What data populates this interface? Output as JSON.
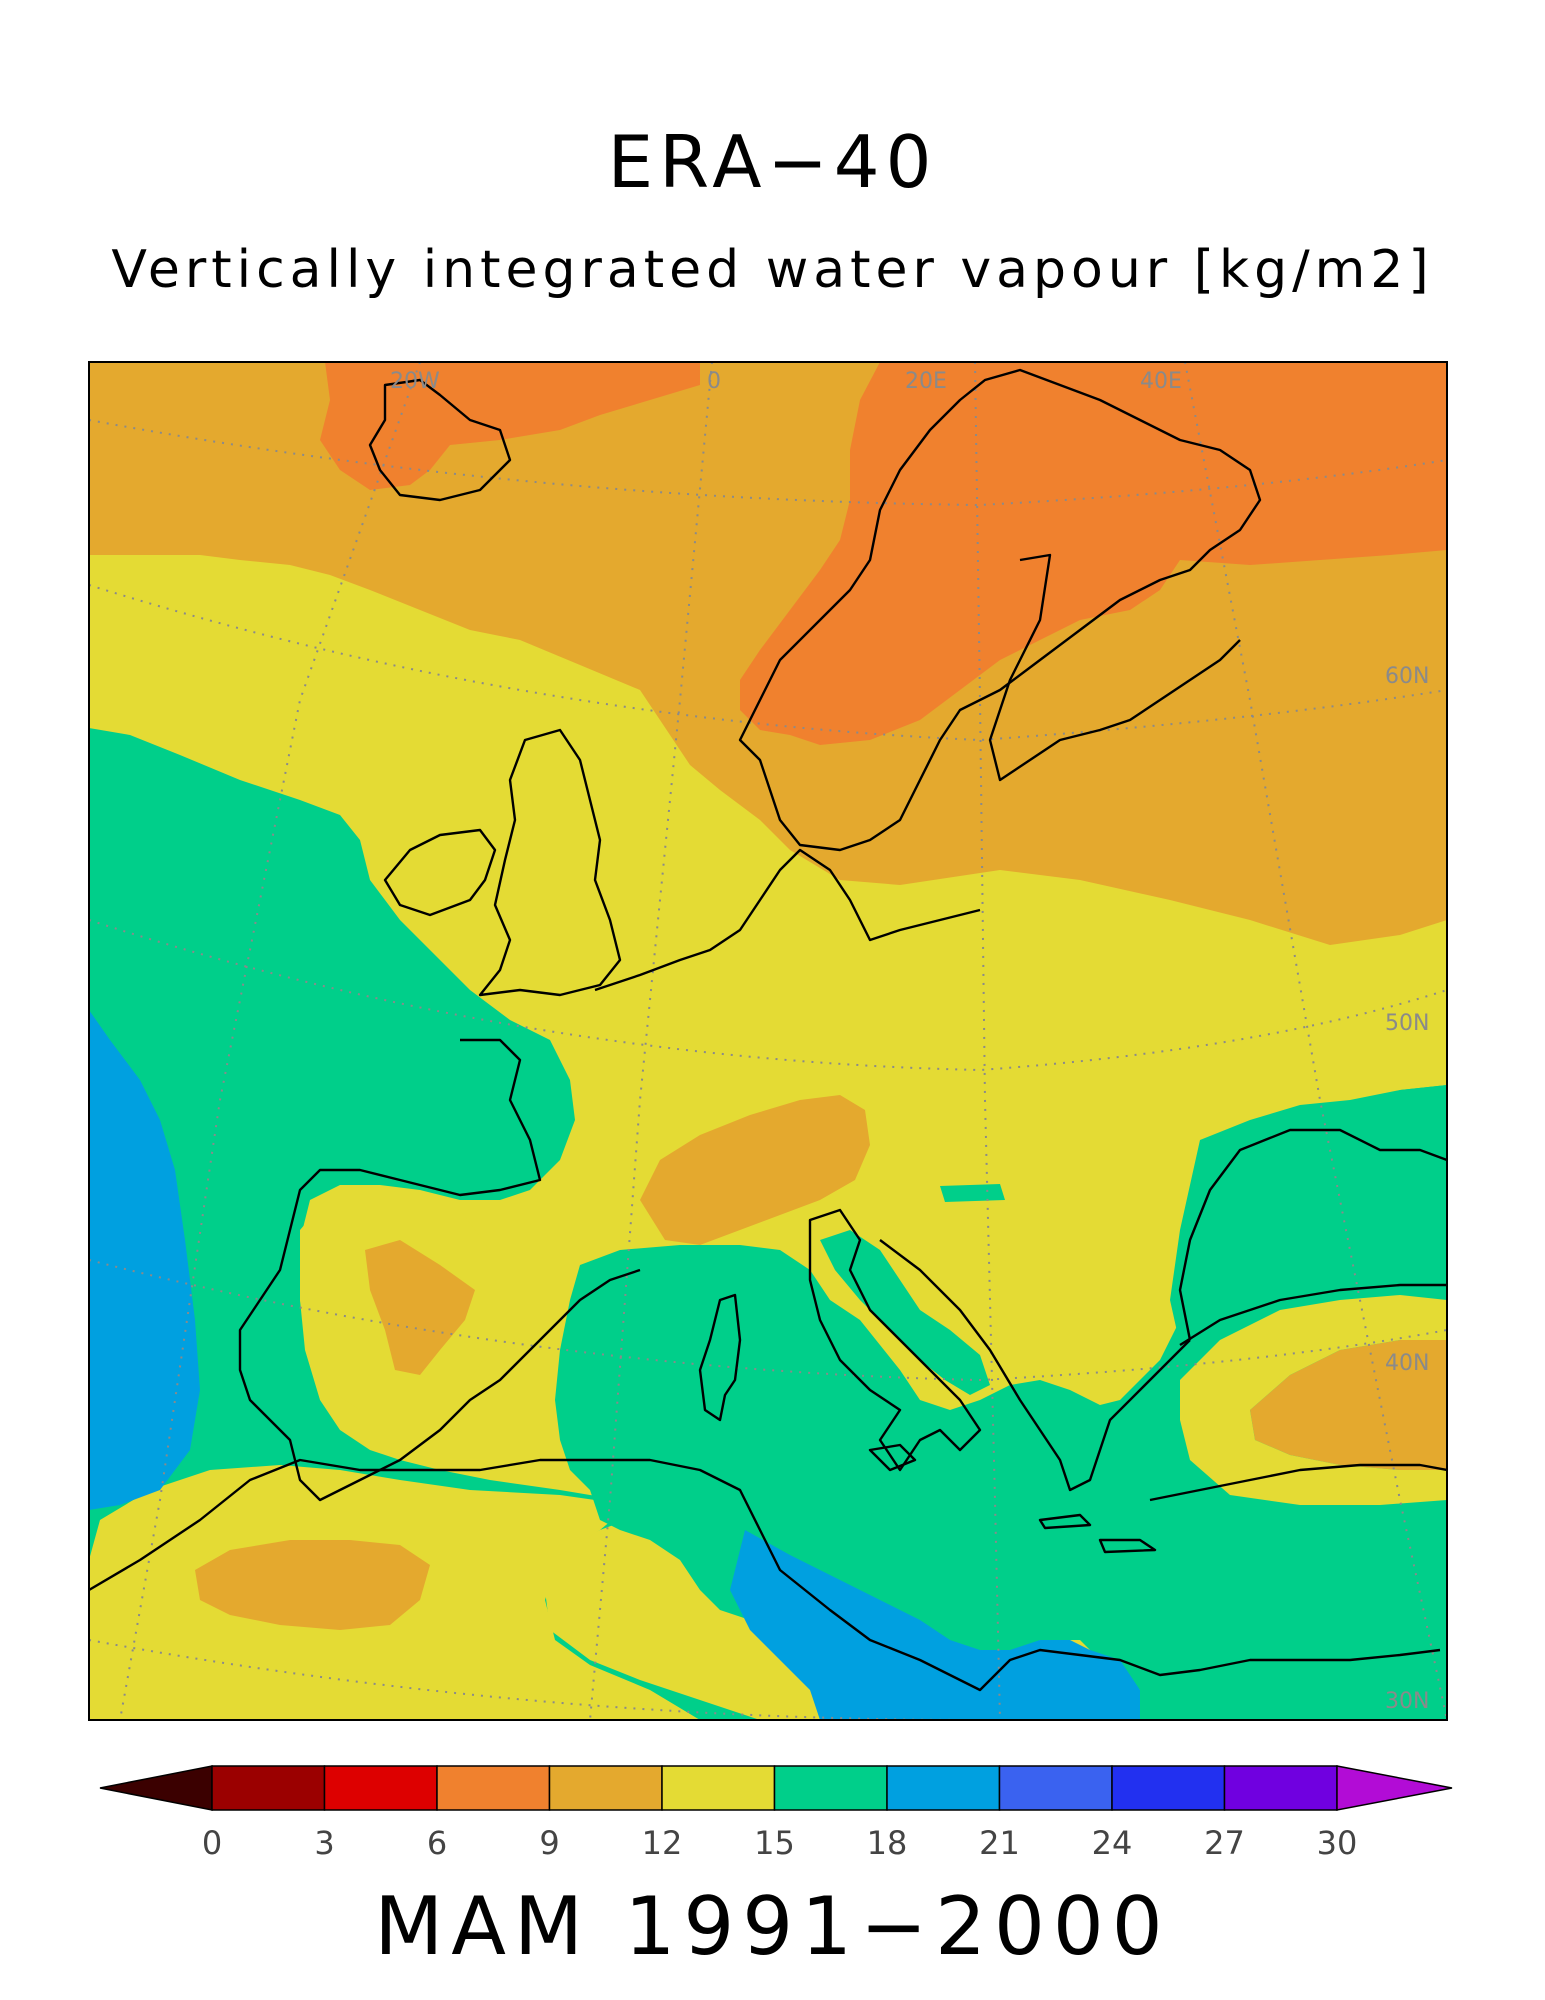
{
  "title": "ERA−40",
  "subtitle": "Vertically integrated water vapour [kg/m2]",
  "period": "MAM 1991−2000",
  "map": {
    "variable_units": "kg/m2",
    "lon_labels": [
      "20W",
      "0",
      "20E",
      "40E"
    ],
    "lat_labels": [
      "60N",
      "50N",
      "40N",
      "30N"
    ],
    "field_colors": {
      "level_6_9": "#f0812e",
      "level_9_12": "#e4a92e",
      "level_12_15": "#e4db34",
      "level_15_18": "#00cf8a",
      "level_18_21": "#00a0e0"
    },
    "coastline_color": "#000000",
    "graticule_color": "#8a8a8a"
  },
  "colorbar": {
    "ticks": [
      "0",
      "3",
      "6",
      "9",
      "12",
      "15",
      "18",
      "21",
      "24",
      "27",
      "30"
    ],
    "under_color": "#3b0000",
    "over_color": "#b20cd6",
    "colors": [
      "#9b0000",
      "#dd0000",
      "#f0812e",
      "#e4a92e",
      "#e4db34",
      "#00cf8a",
      "#00a0e0",
      "#3a62f0",
      "#2230f0",
      "#7000e0"
    ]
  }
}
